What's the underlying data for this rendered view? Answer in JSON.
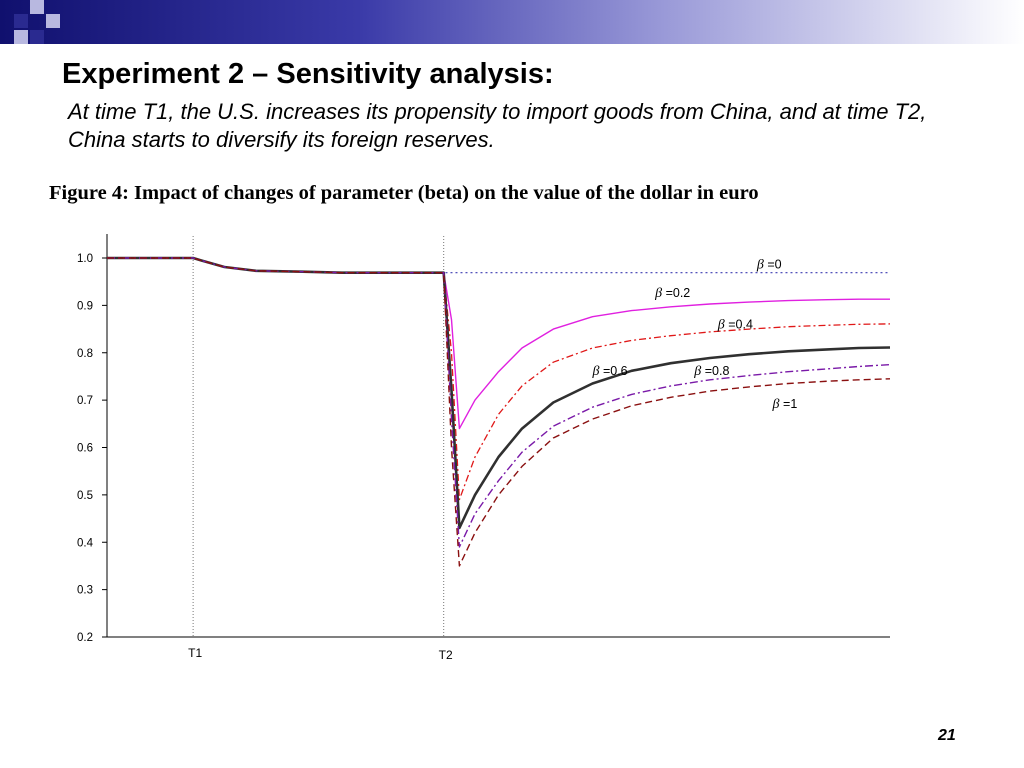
{
  "slide": {
    "title": "Experiment 2 – Sensitivity analysis:",
    "subtitle": "At time T1, the U.S. increases its propensity to import goods from China, and at time T2, China starts to diversify its foreign reserves.",
    "figure_caption": "Figure 4: Impact of changes of parameter (beta) on the value of the dollar in euro",
    "slide_number": "21"
  },
  "colors": {
    "band_dark": "#10106e",
    "deco_square": "#2a2a90",
    "deco_light": "#b8b8e0"
  },
  "chart_data": {
    "type": "line",
    "title": "",
    "xlabel": "",
    "ylabel": "",
    "ylim": [
      0.2,
      1.0
    ],
    "yticks": [
      "1.0",
      "0.9",
      "0.8",
      "0.7",
      "0.6",
      "0.5",
      "0.4",
      "0.3",
      "0.2"
    ],
    "x_range": [
      0,
      100
    ],
    "x_markers": [
      {
        "label": "T1",
        "x": 11
      },
      {
        "label": "T2",
        "x": 43
      }
    ],
    "x": [
      0,
      11,
      12,
      15,
      19,
      25,
      30,
      35,
      43,
      44,
      45,
      47,
      50,
      53,
      57,
      62,
      67,
      72,
      77,
      82,
      87,
      92,
      96,
      100
    ],
    "series": [
      {
        "name": "=0",
        "color": "#3b3bb0",
        "dash": "2,3",
        "width": 1.2,
        "values": [
          1.0,
          1.0,
          0.995,
          0.981,
          0.973,
          0.971,
          0.969,
          0.969,
          0.969,
          0.969,
          0.969,
          0.969,
          0.969,
          0.969,
          0.969,
          0.969,
          0.969,
          0.969,
          0.969,
          0.969,
          0.969,
          0.969,
          0.969,
          0.969
        ]
      },
      {
        "name": "=0.2",
        "color": "#e020e0",
        "dash": "",
        "width": 1.4,
        "values": [
          1.0,
          1.0,
          0.995,
          0.981,
          0.973,
          0.971,
          0.969,
          0.969,
          0.969,
          0.87,
          0.64,
          0.7,
          0.76,
          0.81,
          0.85,
          0.876,
          0.889,
          0.897,
          0.903,
          0.907,
          0.91,
          0.912,
          0.913,
          0.913
        ]
      },
      {
        "name": "=0.4",
        "color": "#e01818",
        "dash": "7,3,2,3",
        "width": 1.3,
        "values": [
          1.0,
          1.0,
          0.995,
          0.981,
          0.973,
          0.971,
          0.969,
          0.969,
          0.969,
          0.8,
          0.49,
          0.58,
          0.67,
          0.73,
          0.78,
          0.81,
          0.826,
          0.836,
          0.844,
          0.85,
          0.855,
          0.858,
          0.86,
          0.861
        ]
      },
      {
        "name": "=0.6",
        "color": "#303030",
        "dash": "",
        "width": 2.6,
        "values": [
          1.0,
          1.0,
          0.995,
          0.981,
          0.973,
          0.971,
          0.969,
          0.969,
          0.969,
          0.72,
          0.43,
          0.5,
          0.58,
          0.64,
          0.695,
          0.735,
          0.762,
          0.778,
          0.789,
          0.797,
          0.803,
          0.807,
          0.81,
          0.811
        ]
      },
      {
        "name": "=0.8",
        "color": "#7a1aa8",
        "dash": "8,3,2,3",
        "width": 1.4,
        "values": [
          1.0,
          1.0,
          0.995,
          0.981,
          0.973,
          0.971,
          0.969,
          0.969,
          0.969,
          0.66,
          0.39,
          0.46,
          0.53,
          0.59,
          0.645,
          0.685,
          0.712,
          0.73,
          0.743,
          0.752,
          0.76,
          0.766,
          0.771,
          0.775
        ]
      },
      {
        "name": "=1",
        "color": "#8a1010",
        "dash": "7,4",
        "width": 1.4,
        "values": [
          1.0,
          1.0,
          0.995,
          0.981,
          0.973,
          0.971,
          0.969,
          0.969,
          0.969,
          0.6,
          0.35,
          0.42,
          0.5,
          0.56,
          0.62,
          0.66,
          0.688,
          0.706,
          0.719,
          0.728,
          0.735,
          0.74,
          0.743,
          0.745
        ]
      }
    ],
    "annotations": [
      {
        "symbol": "β",
        "text": "=0",
        "x": 83,
        "y": 0.978
      },
      {
        "symbol": "β",
        "text": "=0.2",
        "x": 70,
        "y": 0.918
      },
      {
        "symbol": "β",
        "text": "=0.4",
        "x": 78,
        "y": 0.851
      },
      {
        "symbol": "β",
        "text": "=0.6",
        "x": 62,
        "y": 0.753
      },
      {
        "symbol": "β",
        "text": "=0.8",
        "x": 75,
        "y": 0.753
      },
      {
        "symbol": "β",
        "text": "=1",
        "x": 85,
        "y": 0.683
      }
    ],
    "grid": false,
    "legend": "inline labels"
  }
}
